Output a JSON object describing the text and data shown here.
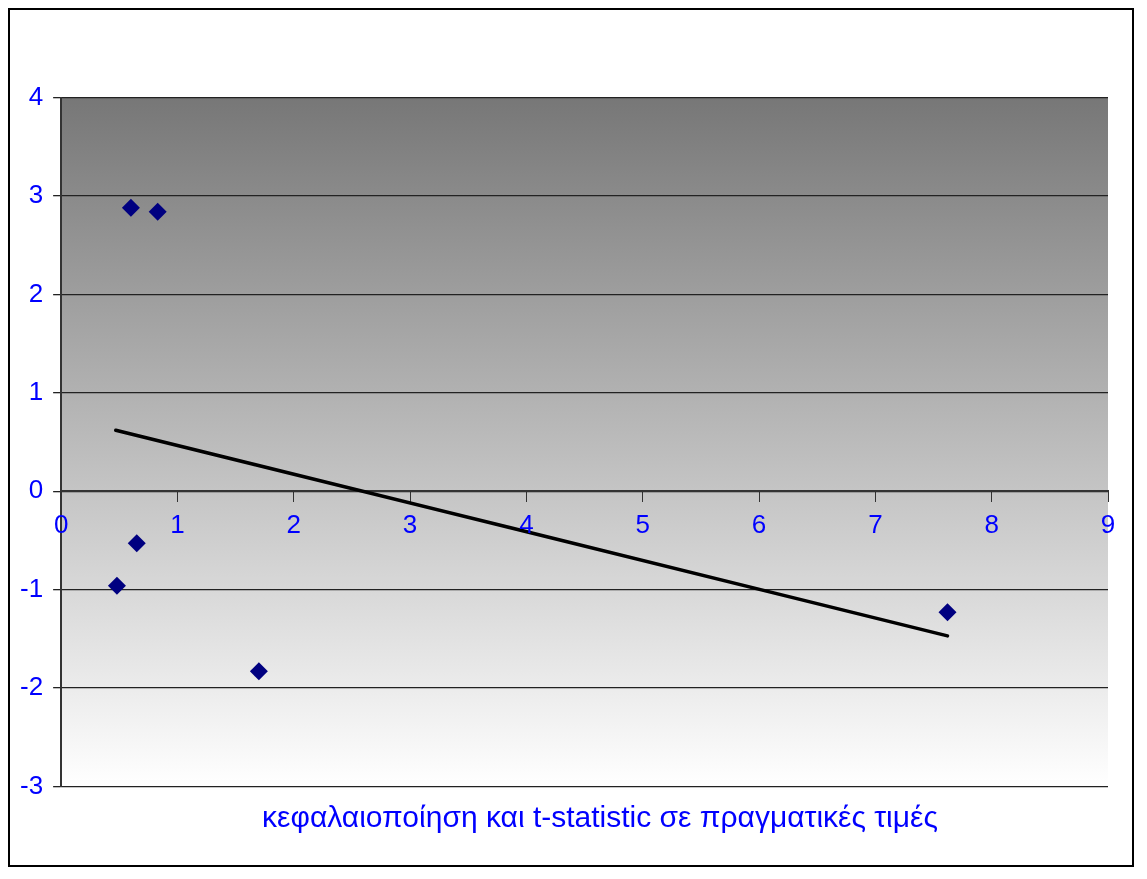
{
  "chart_data": {
    "type": "scatter",
    "xlabel": "κεφαλαιοποίηση και t-statistic σε πραγματικές τιμές",
    "series": [
      {
        "type": "scatter",
        "color": "#000080",
        "marker": "diamond",
        "x": [
          0.6,
          0.83,
          0.65,
          0.48,
          1.7,
          7.62
        ],
        "values": [
          2.88,
          2.84,
          -0.53,
          -0.96,
          -1.83,
          -1.23
        ]
      },
      {
        "type": "line",
        "color": "#000000",
        "marker": "none",
        "x": [
          0.47,
          7.62
        ],
        "values": [
          0.62,
          -1.47
        ]
      }
    ],
    "xlim": [
      0,
      9
    ],
    "xticks": [
      0,
      1,
      2,
      3,
      4,
      5,
      6,
      7,
      8,
      9
    ],
    "ylim": [
      -3,
      4
    ],
    "yticks": [
      -3,
      -2,
      -1,
      0,
      1,
      2,
      3,
      4
    ],
    "grid": "y",
    "legend": false
  }
}
